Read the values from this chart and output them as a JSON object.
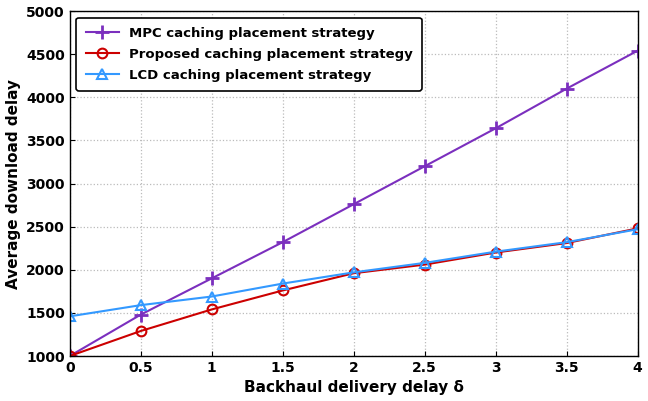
{
  "x": [
    0,
    0.5,
    1.0,
    1.5,
    2.0,
    2.5,
    3.0,
    3.5,
    4.0
  ],
  "mpc": [
    1000,
    1480,
    1900,
    2320,
    2760,
    3200,
    3640,
    4100,
    4540
  ],
  "proposed": [
    1000,
    1290,
    1540,
    1760,
    1960,
    2060,
    2200,
    2310,
    2480
  ],
  "lcd": [
    1460,
    1590,
    1690,
    1840,
    1970,
    2080,
    2210,
    2320,
    2470
  ],
  "mpc_color": "#7B2FBE",
  "proposed_color": "#CC0000",
  "lcd_color": "#3399FF",
  "xlabel": "Backhaul delivery delay δ",
  "ylabel": "Average download delay",
  "xlim": [
    0,
    4
  ],
  "ylim": [
    1000,
    5000
  ],
  "xticks": [
    0,
    0.5,
    1.0,
    1.5,
    2.0,
    2.5,
    3.0,
    3.5,
    4.0
  ],
  "xtick_labels": [
    "0",
    "0.5",
    "1",
    "1.5",
    "2",
    "2.5",
    "3",
    "3.5",
    "4"
  ],
  "yticks": [
    1000,
    1500,
    2000,
    2500,
    3000,
    3500,
    4000,
    4500,
    5000
  ],
  "legend_mpc": "MPC caching placement strategy",
  "legend_proposed": "Proposed caching placement strategy",
  "legend_lcd": "LCD caching placement strategy",
  "bg_color": "#FFFFFF",
  "plot_bg_color": "#FFFFFF",
  "grid_color": "#BBBBBB"
}
